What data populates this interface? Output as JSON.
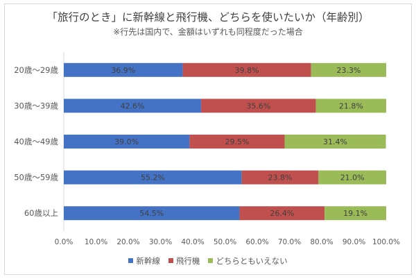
{
  "chart_data": {
    "type": "bar",
    "orientation": "horizontal-stacked-100",
    "title": "「旅行のとき」に新幹線と飛行機、どちらを使いたいか（年齢別）",
    "subtitle": "※行先は国内で、金額はいずれも同程度だった場合",
    "categories": [
      "20歳～29歳",
      "30歳～39歳",
      "40歳～49歳",
      "50歳～59歳",
      "60歳以上"
    ],
    "series": [
      {
        "name": "新幹線",
        "color": "#4472C4",
        "values": [
          36.9,
          42.6,
          39.0,
          55.2,
          54.5
        ],
        "labels": [
          "36.9%",
          "42.6%",
          "39.0%",
          "55.2%",
          "54.5%"
        ]
      },
      {
        "name": "飛行機",
        "color": "#C0504D",
        "values": [
          39.8,
          35.6,
          29.5,
          23.8,
          26.4
        ],
        "labels": [
          "39.8%",
          "35.6%",
          "29.5%",
          "23.8%",
          "26.4%"
        ]
      },
      {
        "name": "どちらともいえない",
        "color": "#9BBB59",
        "values": [
          23.3,
          21.8,
          31.4,
          21.0,
          19.1
        ],
        "labels": [
          "23.3%",
          "21.8%",
          "31.4%",
          "21.0%",
          "19.1%"
        ]
      }
    ],
    "xticks": [
      "0.0%",
      "10.0%",
      "20.0%",
      "30.0%",
      "40.0%",
      "50.0%",
      "60.0%",
      "70.0%",
      "80.0%",
      "90.0%",
      "100.0%"
    ],
    "xlim": [
      0,
      100
    ],
    "grid": false,
    "legend": "bottom"
  }
}
